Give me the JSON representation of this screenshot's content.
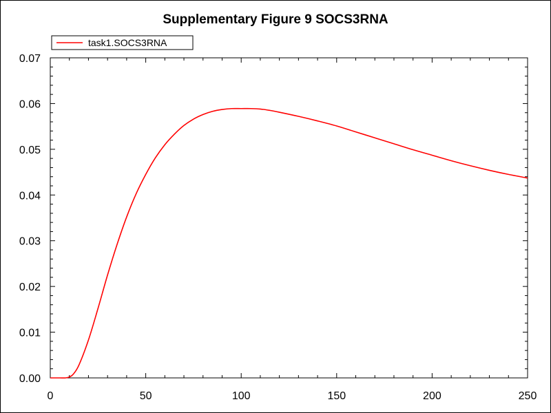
{
  "chart_data": {
    "type": "line",
    "title": "Supplementary Figure 9 SOCS3RNA",
    "xlabel": "",
    "ylabel": "",
    "xlim": [
      0,
      250
    ],
    "ylim": [
      0,
      0.07
    ],
    "xticks": [
      "0",
      "50",
      "100",
      "150",
      "200",
      "250"
    ],
    "yticks": [
      "0.00",
      "0.01",
      "0.02",
      "0.03",
      "0.04",
      "0.05",
      "0.06",
      "0.07"
    ],
    "grid": false,
    "legend_position": "top-left",
    "series": [
      {
        "name": "task1.SOCS3RNA",
        "color": "#ff0000",
        "x": [
          0,
          5,
          8,
          10,
          12,
          15,
          20,
          25,
          30,
          35,
          40,
          45,
          50,
          55,
          60,
          65,
          70,
          75,
          80,
          85,
          90,
          95,
          100,
          105,
          110,
          115,
          120,
          130,
          140,
          150,
          160,
          170,
          180,
          190,
          200,
          210,
          220,
          230,
          240,
          250
        ],
        "y": [
          0,
          0,
          0,
          0.0002,
          0.0008,
          0.0028,
          0.0083,
          0.0152,
          0.0225,
          0.0292,
          0.0352,
          0.0403,
          0.0445,
          0.0481,
          0.051,
          0.0533,
          0.0552,
          0.0566,
          0.0576,
          0.0583,
          0.0587,
          0.0589,
          0.0589,
          0.0589,
          0.0588,
          0.0585,
          0.0581,
          0.0572,
          0.0562,
          0.0551,
          0.0538,
          0.0525,
          0.0512,
          0.0499,
          0.0487,
          0.0475,
          0.0464,
          0.0454,
          0.0445,
          0.0437
        ]
      }
    ]
  }
}
